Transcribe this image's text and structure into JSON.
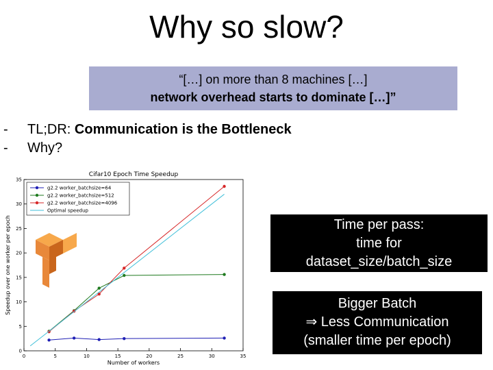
{
  "title": "Why so slow?",
  "quote": {
    "line1": "“[…] on more than 8 machines […]",
    "line2": "network overhead starts to dominate […]”"
  },
  "bullets": [
    {
      "marker": "-",
      "prefix": "TL;DR: ",
      "bold": "Communication is the Bottleneck"
    },
    {
      "marker": "-",
      "prefix": "Why?"
    }
  ],
  "boxes": [
    {
      "lines": [
        "Time per pass:",
        "time for",
        "dataset_size/batch_size"
      ]
    },
    {
      "lines": [
        "Bigger Batch",
        "⇒ Less Communication",
        "(smaller time per epoch)"
      ]
    }
  ],
  "chart_data": {
    "type": "line",
    "title": "Cifar10 Epoch Time Speedup",
    "x_label": "Number of workers",
    "y_label": "Speedup over one worker per epoch",
    "xlim": [
      0,
      35
    ],
    "xticks": [
      0,
      5,
      10,
      15,
      20,
      25,
      30,
      35
    ],
    "ylim": [
      0,
      35
    ],
    "yticks": [
      0,
      5,
      10,
      15,
      20,
      25,
      30,
      35
    ],
    "grid": false,
    "legend": "upper left",
    "series": [
      {
        "name": "g2.2 worker_batchsize=64",
        "color": "#1f1fb4",
        "marker": true,
        "x": [
          4,
          8,
          12,
          16,
          32
        ],
        "values": [
          2.2,
          2.6,
          2.3,
          2.5,
          2.6
        ]
      },
      {
        "name": "g2.2 worker_batchsize=512",
        "color": "#1f7a1f",
        "marker": true,
        "x": [
          4,
          8,
          12,
          16,
          32
        ],
        "values": [
          4.0,
          8.2,
          12.8,
          15.4,
          15.6
        ]
      },
      {
        "name": "g2.2 worker_batchsize=4096",
        "color": "#d62728",
        "marker": true,
        "x": [
          4,
          8,
          12,
          16,
          32
        ],
        "values": [
          3.9,
          8.1,
          11.6,
          16.9,
          33.6
        ]
      },
      {
        "name": "Optimal speedup",
        "color": "#3fbfd9",
        "marker": false,
        "x": [
          1,
          32
        ],
        "values": [
          1,
          32
        ]
      }
    ]
  }
}
